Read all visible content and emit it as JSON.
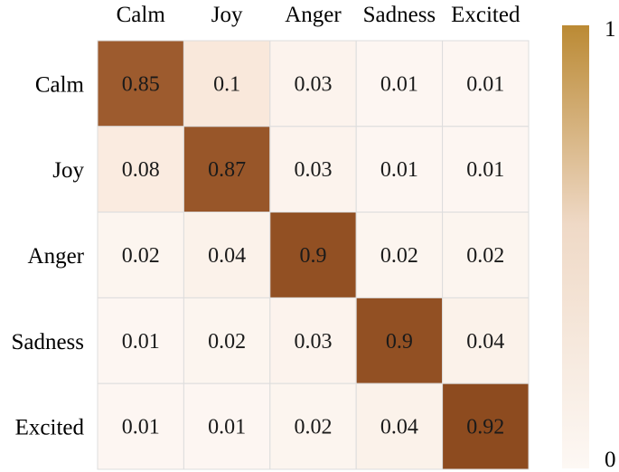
{
  "chart_data": {
    "type": "heatmap",
    "title": "",
    "xlabel": "",
    "ylabel": "",
    "row_labels": [
      "Calm",
      "Joy",
      "Anger",
      "Sadness",
      "Excited"
    ],
    "col_labels": [
      "Calm",
      "Joy",
      "Anger",
      "Sadness",
      "Excited"
    ],
    "values": [
      [
        0.85,
        0.1,
        0.03,
        0.01,
        0.01
      ],
      [
        0.08,
        0.87,
        0.03,
        0.01,
        0.01
      ],
      [
        0.02,
        0.04,
        0.9,
        0.02,
        0.02
      ],
      [
        0.01,
        0.02,
        0.03,
        0.9,
        0.04
      ],
      [
        0.01,
        0.01,
        0.02,
        0.04,
        0.92
      ]
    ],
    "colorbar": {
      "min": 0,
      "max": 1,
      "min_label": "0",
      "max_label": "1"
    },
    "colors": {
      "low": "#fdf8f4",
      "mid": "#e9a777",
      "high": "#7c3a0e",
      "bar_top": "#bb8a34",
      "grid": "#dddddd"
    }
  }
}
